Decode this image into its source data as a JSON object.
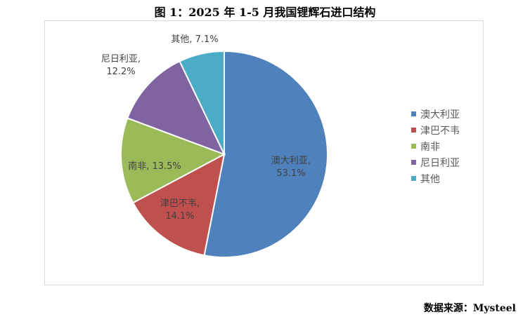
{
  "title": "图 1：2025 年 1-5 月我国锂辉石进口结构",
  "source_text": "数据来源：Mysteel",
  "chart_data": {
    "type": "pie",
    "title": "图 1：2025 年 1-5 月我国锂辉石进口结构",
    "categories": [
      "澳大利亚",
      "津巴不韦",
      "南非",
      "尼日利亚",
      "其他"
    ],
    "values": [
      53.1,
      14.1,
      13.5,
      12.2,
      7.1
    ],
    "value_labels": [
      "53.1%",
      "14.1%",
      "13.5%",
      "12.2%",
      "7.1%"
    ],
    "colors": [
      "#4f81bd",
      "#c0504d",
      "#9bbb59",
      "#8064a2",
      "#4bacc6"
    ],
    "legend_position": "right",
    "start_angle": "12 o'clock, clockwise"
  }
}
